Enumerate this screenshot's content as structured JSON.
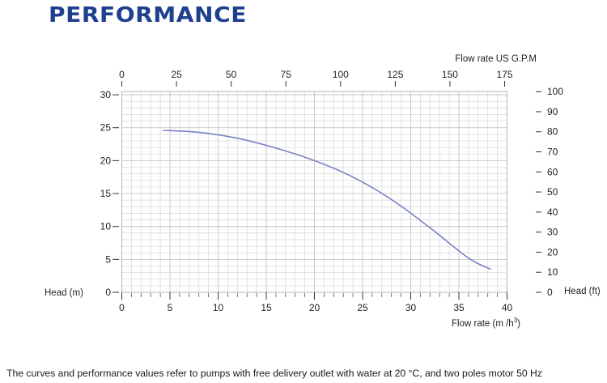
{
  "page": {
    "title": "PERFORMANCE",
    "footnote": "The curves and performance values refer to pumps with free delivery outlet with water at 20 °C, and two poles motor 50 Hz"
  },
  "chart_data": {
    "type": "line",
    "title": "",
    "grid": true,
    "line_color": "#7a82c8",
    "x_bottom": {
      "label": "Flow rate  (m /h)",
      "unit_superscript": "3",
      "ticks": [
        0,
        5,
        10,
        15,
        20,
        25,
        30,
        35,
        40
      ],
      "range": [
        0,
        40
      ]
    },
    "x_top": {
      "label": "Flow rate US  G.P.M",
      "ticks": [
        0,
        25,
        50,
        75,
        100,
        125,
        150,
        175
      ],
      "range": [
        0,
        176.1
      ]
    },
    "y_left": {
      "label": "Head (m)",
      "ticks": [
        0,
        5,
        10,
        15,
        20,
        25,
        30
      ],
      "range": [
        0,
        30.5
      ]
    },
    "y_right": {
      "label": "Head (ft)",
      "ticks": [
        0,
        10,
        20,
        30,
        40,
        50,
        60,
        70,
        80,
        90,
        100
      ],
      "range": [
        0,
        100.07
      ]
    },
    "series": [
      {
        "name": "",
        "x": [
          4.3,
          8,
          12,
          16,
          20,
          24,
          28,
          32,
          36,
          38.3
        ],
        "y": [
          24.6,
          24.3,
          23.4,
          21.9,
          20.0,
          17.5,
          14.1,
          9.8,
          5.2,
          3.5
        ]
      }
    ]
  }
}
